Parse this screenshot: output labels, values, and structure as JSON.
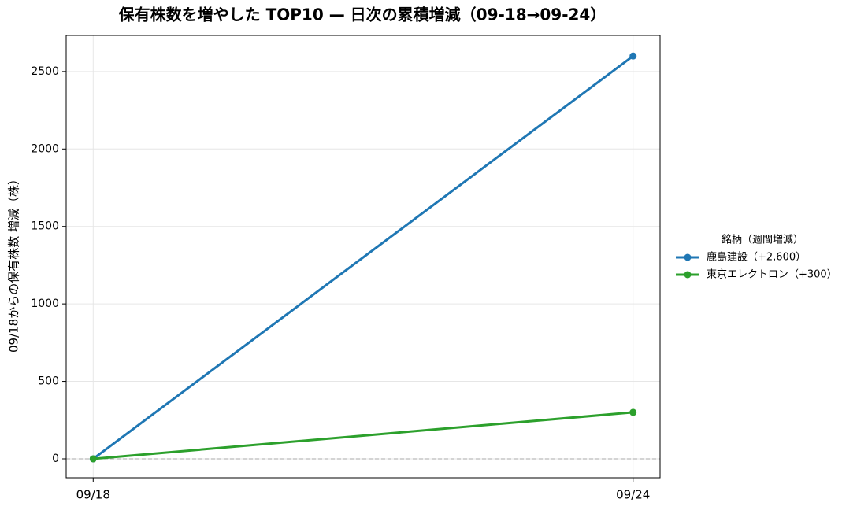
{
  "chart_data": {
    "type": "line",
    "title": "保有株数を増やした TOP10 — 日次の累積増減（09-18→09-24）",
    "y_label": "09/18からの保有株数 増減（株）",
    "categories": [
      "09/18",
      "09/24"
    ],
    "series": [
      {
        "name": "鹿島建設（+2,600）",
        "color": "#1f77b4",
        "values": [
          0,
          2600
        ]
      },
      {
        "name": "東京エレクトロン（+300）",
        "color": "#2ca02c",
        "values": [
          0,
          300
        ]
      }
    ],
    "legend_title": "銘柄（週間増減）",
    "legend": "right",
    "ylim": [
      -122,
      2733
    ],
    "yticks": [
      0,
      500,
      1000,
      1500,
      2000,
      2500
    ],
    "reference_line": 0,
    "grid": true
  }
}
